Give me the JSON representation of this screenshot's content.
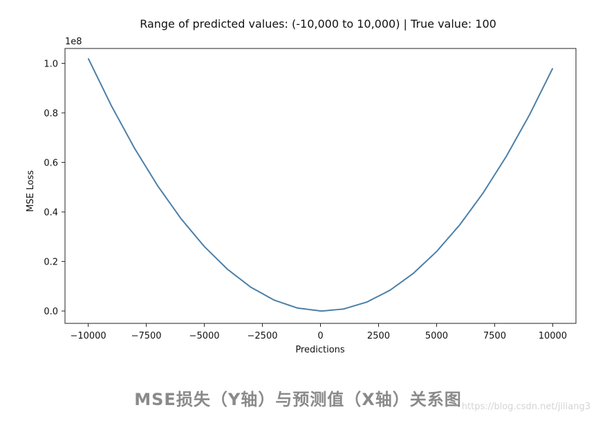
{
  "chart_data": {
    "type": "line",
    "title": "Range of predicted values: (-10,000 to 10,000) | True value: 100",
    "xlabel": "Predictions",
    "ylabel": "MSE Loss",
    "y_offset_label": "1e8",
    "xlim": [
      -11000,
      11000
    ],
    "ylim": [
      -0.05,
      1.06
    ],
    "x_ticks": [
      -10000,
      -7500,
      -5000,
      -2500,
      0,
      2500,
      5000,
      7500,
      10000
    ],
    "x_tick_labels": [
      "−10000",
      "−7500",
      "−5000",
      "−2500",
      "0",
      "2500",
      "5000",
      "7500",
      "10000"
    ],
    "y_ticks": [
      0.0,
      0.2,
      0.4,
      0.6,
      0.8,
      1.0
    ],
    "y_tick_labels": [
      "0.0",
      "0.2",
      "0.4",
      "0.6",
      "0.8",
      "1.0"
    ],
    "grid": false,
    "series": [
      {
        "color": "#4a7fa8",
        "x": [
          -10000,
          -9000,
          -8000,
          -7000,
          -6000,
          -5000,
          -4000,
          -3000,
          -2000,
          -1000,
          0,
          100,
          1000,
          2000,
          3000,
          4000,
          5000,
          6000,
          7000,
          8000,
          9000,
          10000
        ],
        "y": [
          1.0201,
          0.8281,
          0.6561,
          0.5041,
          0.3721,
          0.2601,
          0.1681,
          0.0961,
          0.0441,
          0.0121,
          0.0001,
          0.0,
          0.0081,
          0.0361,
          0.0841,
          0.1521,
          0.2401,
          0.3481,
          0.4761,
          0.6241,
          0.7921,
          0.9801
        ]
      }
    ]
  },
  "caption": "MSE损失（Y轴）与预测值（X轴）关系图",
  "watermark": "https://blog.csdn.net/jiliang3"
}
